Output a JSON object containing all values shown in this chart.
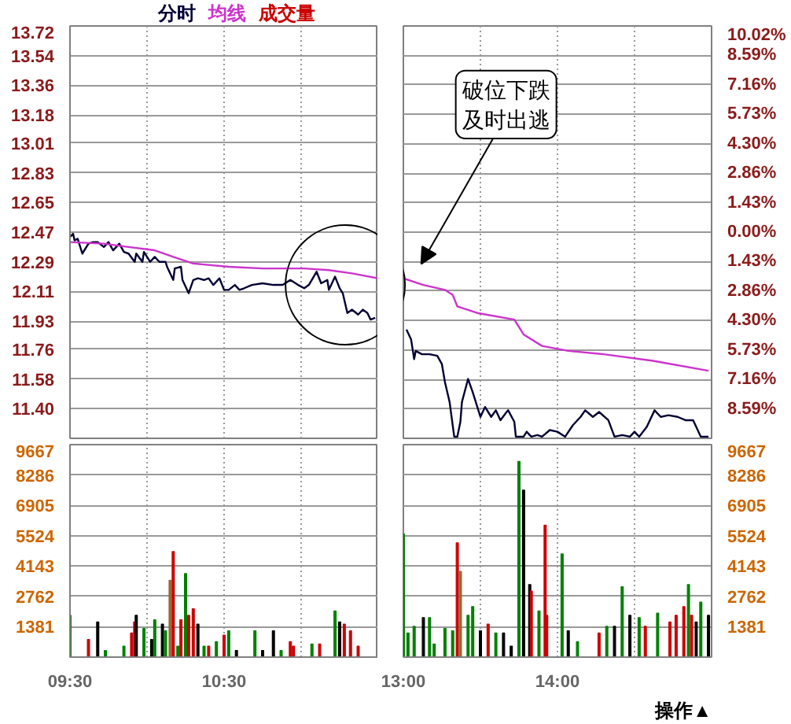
{
  "chart_data": [
    {
      "type": "line",
      "xlim": [
        9.5,
        11.5
      ],
      "ylim": [
        11.22,
        13.72
      ],
      "yticks": [
        13.72,
        13.54,
        13.36,
        13.18,
        13.01,
        12.83,
        12.65,
        12.47,
        12.29,
        12.11,
        11.93,
        11.76,
        11.58,
        {
          "value": 11.4,
          "label": "11.40"
        }
      ],
      "xticks": [
        9.5,
        10,
        10.5,
        11,
        11.5
      ],
      "tick_labels": "y",
      "grid": true,
      "marker": "none",
      "line_style": "solid",
      "series": [
        {
          "name": "分时",
          "color": "#000033",
          "x": [
            9.5,
            9.52,
            9.53,
            9.55,
            9.58,
            9.62,
            9.65,
            9.68,
            9.72,
            9.75,
            9.78,
            9.82,
            9.85,
            9.88,
            9.92,
            9.93,
            9.97,
            9.98,
            10.02,
            10.05,
            10.08,
            10.12,
            10.13,
            10.17,
            10.18,
            10.22,
            10.23,
            10.27,
            10.3,
            10.33,
            10.37,
            10.4,
            10.43,
            10.47,
            10.5,
            10.53,
            10.57,
            10.6,
            10.63,
            10.68,
            10.75,
            10.82,
            10.88,
            10.93,
            10.98,
            11.02,
            11.05,
            11.1,
            11.13,
            11.17,
            11.18,
            11.22,
            11.25,
            11.27,
            11.3,
            11.33,
            11.37,
            11.4,
            11.43,
            11.45,
            11.48
          ],
          "values": [
            12.44,
            12.46,
            12.42,
            12.43,
            12.34,
            12.4,
            12.41,
            12.41,
            12.38,
            12.41,
            12.36,
            12.4,
            12.35,
            12.34,
            12.29,
            12.34,
            12.29,
            12.35,
            12.29,
            12.32,
            12.29,
            12.29,
            12.26,
            12.18,
            12.25,
            12.26,
            12.18,
            12.1,
            12.18,
            12.19,
            12.18,
            12.19,
            12.15,
            12.19,
            12.12,
            12.12,
            12.15,
            12.12,
            12.13,
            12.15,
            12.16,
            12.15,
            12.15,
            12.18,
            12.15,
            12.13,
            12.15,
            12.23,
            12.16,
            12.18,
            12.12,
            12.2,
            12.13,
            12.1,
            11.98,
            12.0,
            11.97,
            12.0,
            11.98,
            11.94,
            11.95
          ]
        },
        {
          "name": "均线",
          "color": "#cc33cc",
          "x": [
            9.5,
            9.72,
            9.88,
            10.05,
            10.17,
            10.3,
            10.53,
            10.75,
            11.02,
            11.18,
            11.33,
            11.5
          ],
          "values": [
            12.41,
            12.4,
            12.38,
            12.36,
            12.32,
            12.28,
            12.26,
            12.25,
            12.25,
            12.24,
            12.22,
            12.19
          ]
        }
      ]
    },
    {
      "type": "line",
      "xlim": [
        13,
        15
      ],
      "ylim": [
        11.22,
        13.72
      ],
      "y2lim": [
        -10.02,
        10.02
      ],
      "y2ticks": [
        {
          "value": 10.02,
          "label": "10.02%"
        },
        {
          "value": 8.59,
          "label": "8.59%"
        },
        {
          "value": 7.16,
          "label": "7.16%"
        },
        {
          "value": 5.73,
          "label": "5.73%"
        },
        {
          "value": 4.3,
          "label": "4.30%"
        },
        {
          "value": 2.86,
          "label": "2.86%"
        },
        {
          "value": 1.43,
          "label": "1.43%"
        },
        {
          "value": 0,
          "label": "0.00%"
        },
        {
          "value": -1.43,
          "label": "1.43%"
        },
        {
          "value": -2.86,
          "label": "2.86%"
        },
        {
          "value": -4.3,
          "label": "4.30%"
        },
        {
          "value": -5.73,
          "label": "5.73%"
        },
        {
          "value": -7.16,
          "label": "7.16%"
        },
        {
          "value": -8.59,
          "label": "8.59%"
        }
      ],
      "xticks": [
        13,
        13.5,
        14,
        14.5,
        15
      ],
      "tick_labels": "y",
      "grid": true,
      "marker": "none",
      "line_style": "solid",
      "annotations": [
        "破位下跌及时出逃"
      ],
      "series": [
        {
          "color": "#000033",
          "x": [
            13.02,
            13.05,
            13.07,
            13.08,
            13.12,
            13.17,
            13.22,
            13.25,
            13.27,
            13.3,
            13.33,
            13.35,
            13.37,
            13.38,
            13.42,
            13.45,
            13.48,
            13.5,
            13.53,
            13.57,
            13.6,
            13.63,
            13.67,
            13.68,
            13.72,
            13.73,
            13.78,
            13.8,
            13.83,
            13.87,
            13.9,
            13.95,
            14,
            14.05,
            14.1,
            14.15,
            14.18,
            14.23,
            14.27,
            14.33,
            14.37,
            14.42,
            14.47,
            14.5,
            14.53,
            14.58,
            14.63,
            14.67,
            14.72,
            14.78,
            14.83,
            14.88,
            14.9,
            14.93,
            14.98
          ],
          "values": [
            11.88,
            11.82,
            11.7,
            11.75,
            11.73,
            11.73,
            11.72,
            11.67,
            11.56,
            11.44,
            11.23,
            11.23,
            11.32,
            11.44,
            11.58,
            11.5,
            11.41,
            11.35,
            11.41,
            11.35,
            11.39,
            11.33,
            11.38,
            11.39,
            11.32,
            11.23,
            11.23,
            11.26,
            11.23,
            11.24,
            11.23,
            11.27,
            11.26,
            11.23,
            11.3,
            11.35,
            11.39,
            11.35,
            11.38,
            11.33,
            11.23,
            11.24,
            11.23,
            11.26,
            11.23,
            11.29,
            11.39,
            11.35,
            11.36,
            11.35,
            11.33,
            11.33,
            11.29,
            11.23,
            11.23
          ]
        },
        {
          "color": "#cc33cc",
          "x": [
            13,
            13.13,
            13.27,
            13.32,
            13.35,
            13.48,
            13.72,
            13.78,
            13.9,
            14.07,
            14.3,
            14.62,
            14.98
          ],
          "values": [
            12.19,
            12.15,
            12.12,
            12.09,
            12.02,
            11.98,
            11.94,
            11.85,
            11.78,
            11.75,
            11.73,
            11.69,
            11.63
          ]
        }
      ]
    },
    {
      "type": "bar",
      "xlim": [
        9.5,
        11.5
      ],
      "ylim": [
        0,
        9667
      ],
      "yticks": [
        1381,
        2762,
        4143,
        5524,
        6905,
        8286,
        9667
      ],
      "xticks": [
        {
          "value": 9.5,
          "label": "09:30"
        },
        {
          "value": 10,
          "label": null
        },
        {
          "value": 10.5,
          "label": "10:30"
        },
        {
          "value": 11,
          "label": null
        },
        {
          "value": 11.5,
          "label": null
        }
      ],
      "grid": true,
      "series": [
        {
          "name": "成交量",
          "color": "#cc0000",
          "x": [
            9.5,
            9.62,
            9.68,
            9.73,
            9.85,
            9.9,
            9.92,
            9.93,
            9.98,
            10.03,
            10.05,
            10.1,
            10.12,
            10.15,
            10.17,
            10.2,
            10.22,
            10.25,
            10.27,
            10.3,
            10.33,
            10.37,
            10.4,
            10.45,
            10.5,
            10.53,
            10.58,
            10.7,
            10.75,
            10.82,
            10.87,
            10.93,
            10.95,
            11.07,
            11.12,
            11.22,
            11.25,
            11.28,
            11.32,
            11.37
          ],
          "values": [
            1900,
            800,
            1600,
            300,
            500,
            1100,
            1600,
            1900,
            1300,
            800,
            1700,
            1500,
            1200,
            3500,
            4800,
            500,
            1700,
            3800,
            1900,
            2200,
            1500,
            500,
            500,
            700,
            1000,
            1200,
            300,
            1200,
            300,
            1200,
            300,
            700,
            500,
            600,
            600,
            2100,
            1600,
            1500,
            1200,
            500
          ],
          "colors": [
            "#008000",
            "#cc0000",
            "#000000",
            "#008000",
            "#008000",
            "#cc0000",
            "#cc0000",
            "#000000",
            "#008000",
            "#000000",
            "#008000",
            "#000000",
            "#008000",
            "#996633",
            "#cc0000",
            "#008000",
            "#cc0000",
            "#008000",
            "#cc0000",
            "#cc0000",
            "#000000",
            "#008000",
            "#cc0000",
            "#008000",
            "#cc0000",
            "#008000",
            "#000000",
            "#008000",
            "#000000",
            "#000000",
            "#008000",
            "#cc0000",
            "#cc0000",
            "#008000",
            "#cc0000",
            "#008000",
            "#000000",
            "#cc0000",
            "#cc0000",
            "#cc0000"
          ]
        }
      ]
    },
    {
      "type": "bar",
      "xlim": [
        13,
        15
      ],
      "ylim": [
        0,
        9667
      ],
      "yticks": [
        1381,
        2762,
        4143,
        5524,
        6905,
        8286,
        9667
      ],
      "xticks": [
        {
          "value": 13,
          "label": "13:00"
        },
        {
          "value": 13.5,
          "label": null
        },
        {
          "value": 14,
          "label": "14:00"
        },
        {
          "value": 14.5,
          "label": null
        },
        {
          "value": 15,
          "label": null
        }
      ],
      "grid": true,
      "annotations": [
        "操作▲"
      ],
      "tick_labels": true,
      "series": [
        {
          "color": "#cc0000",
          "x": [
            13.0,
            13.03,
            13.07,
            13.13,
            13.17,
            13.2,
            13.27,
            13.32,
            13.35,
            13.37,
            13.42,
            13.45,
            13.5,
            13.55,
            13.6,
            13.65,
            13.7,
            13.75,
            13.78,
            13.82,
            13.83,
            13.88,
            13.92,
            13.93,
            14.03,
            14.07,
            14.13,
            14.27,
            14.32,
            14.37,
            14.42,
            14.47,
            14.53,
            14.57,
            14.65,
            14.73,
            14.77,
            14.82,
            14.85,
            14.87,
            14.9,
            14.93,
            14.98
          ],
          "values": [
            5600,
            1100,
            1400,
            1800,
            1800,
            600,
            1300,
            1200,
            5200,
            3900,
            1900,
            2300,
            1200,
            1500,
            1100,
            1100,
            500,
            8900,
            7600,
            3300,
            3000,
            2100,
            6000,
            1900,
            4700,
            1200,
            700,
            1100,
            1400,
            1400,
            3200,
            1900,
            1800,
            1400,
            2000,
            1600,
            1900,
            2300,
            3300,
            1900,
            1600,
            2500,
            1900
          ],
          "colors": [
            "#008000",
            "#008000",
            "#008000",
            "#000000",
            "#008000",
            "#008000",
            "#008000",
            "#008000",
            "#cc0000",
            "#996633",
            "#008000",
            "#008000",
            "#000000",
            "#cc0000",
            "#008000",
            "#000000",
            "#000000",
            "#008000",
            "#000000",
            "#000000",
            "#cc0000",
            "#008000",
            "#cc0000",
            "#cc0000",
            "#008000",
            "#000000",
            "#008000",
            "#cc0000",
            "#008000",
            "#000000",
            "#008000",
            "#000000",
            "#008000",
            "#cc0000",
            "#008000",
            "#cc0000",
            "#cc0000",
            "#cc0000",
            "#008000",
            "#cc0000",
            "#000000",
            "#008000",
            "#000000"
          ]
        }
      ]
    }
  ]
}
